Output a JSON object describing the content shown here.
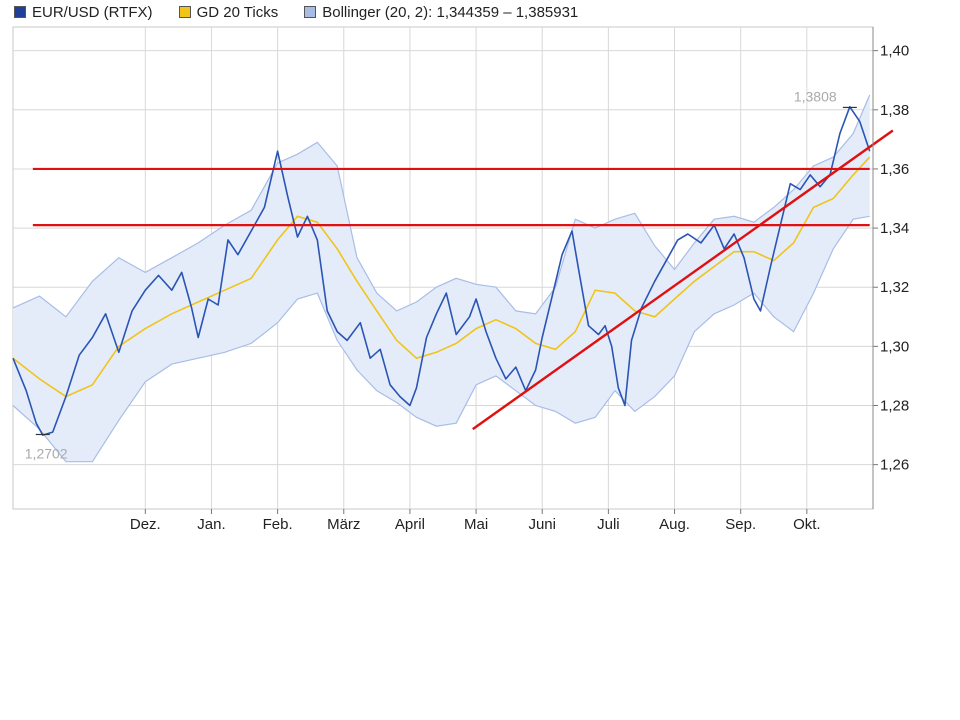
{
  "colors": {
    "price": "#2a55b5",
    "ma": "#f0c419",
    "band_fill": "#e4ecfa",
    "band_edge": "#a8bde6",
    "grid": "#d8d8d8",
    "annotation": "#e01010"
  },
  "chart_data": {
    "type": "line",
    "title": "",
    "xlabel": "",
    "ylabel": "",
    "x_range": [
      "Nov",
      "Okt.+"
    ],
    "ylim": [
      1.245,
      1.408
    ],
    "grid": true,
    "legend_position": "top-left",
    "legend": [
      {
        "name": "EUR/USD (RTFX)",
        "color": "#1f3f99"
      },
      {
        "name": "GD 20 Ticks",
        "color": "#f0c419"
      },
      {
        "name": "Bollinger (20, 2): 1,344359 – 1,385931",
        "color": "#a8bde6"
      }
    ],
    "y_ticks": [
      {
        "value": 1.4,
        "label": "1,40"
      },
      {
        "value": 1.38,
        "label": "1,38"
      },
      {
        "value": 1.36,
        "label": "1,36"
      },
      {
        "value": 1.34,
        "label": "1,34"
      },
      {
        "value": 1.32,
        "label": "1,32"
      },
      {
        "value": 1.3,
        "label": "1,30"
      },
      {
        "value": 1.28,
        "label": "1,28"
      },
      {
        "value": 1.26,
        "label": "1,26"
      }
    ],
    "x_ticks": [
      {
        "t": 1.0,
        "label": "Dez."
      },
      {
        "t": 2.0,
        "label": "Jan."
      },
      {
        "t": 3.0,
        "label": "Feb."
      },
      {
        "t": 4.0,
        "label": "März"
      },
      {
        "t": 5.0,
        "label": "April"
      },
      {
        "t": 6.0,
        "label": "Mai"
      },
      {
        "t": 7.0,
        "label": "Juni"
      },
      {
        "t": 8.0,
        "label": "Juli"
      },
      {
        "t": 9.0,
        "label": "Aug."
      },
      {
        "t": 10.0,
        "label": "Sep."
      },
      {
        "t": 11.0,
        "label": "Okt."
      }
    ],
    "x_domain": [
      -1.0,
      12.0
    ],
    "series": [
      {
        "name": "EUR/USD (RTFX)",
        "role": "price",
        "points": [
          [
            -1.0,
            1.296
          ],
          [
            -0.8,
            1.285
          ],
          [
            -0.65,
            1.274
          ],
          [
            -0.55,
            1.27
          ],
          [
            -0.4,
            1.271
          ],
          [
            -0.2,
            1.283
          ],
          [
            0.0,
            1.297
          ],
          [
            0.2,
            1.303
          ],
          [
            0.4,
            1.311
          ],
          [
            0.6,
            1.298
          ],
          [
            0.8,
            1.312
          ],
          [
            1.0,
            1.319
          ],
          [
            1.2,
            1.324
          ],
          [
            1.4,
            1.319
          ],
          [
            1.55,
            1.325
          ],
          [
            1.7,
            1.313
          ],
          [
            1.8,
            1.303
          ],
          [
            1.95,
            1.316
          ],
          [
            2.1,
            1.314
          ],
          [
            2.25,
            1.336
          ],
          [
            2.4,
            1.331
          ],
          [
            2.6,
            1.339
          ],
          [
            2.8,
            1.347
          ],
          [
            3.0,
            1.366
          ],
          [
            3.15,
            1.351
          ],
          [
            3.3,
            1.337
          ],
          [
            3.45,
            1.344
          ],
          [
            3.6,
            1.336
          ],
          [
            3.75,
            1.312
          ],
          [
            3.9,
            1.305
          ],
          [
            4.05,
            1.302
          ],
          [
            4.25,
            1.308
          ],
          [
            4.4,
            1.296
          ],
          [
            4.55,
            1.299
          ],
          [
            4.7,
            1.287
          ],
          [
            4.85,
            1.283
          ],
          [
            5.0,
            1.28
          ],
          [
            5.1,
            1.286
          ],
          [
            5.25,
            1.303
          ],
          [
            5.4,
            1.311
          ],
          [
            5.55,
            1.318
          ],
          [
            5.7,
            1.304
          ],
          [
            5.9,
            1.31
          ],
          [
            6.0,
            1.316
          ],
          [
            6.15,
            1.305
          ],
          [
            6.3,
            1.296
          ],
          [
            6.45,
            1.289
          ],
          [
            6.6,
            1.293
          ],
          [
            6.75,
            1.285
          ],
          [
            6.9,
            1.292
          ],
          [
            7.0,
            1.303
          ],
          [
            7.15,
            1.317
          ],
          [
            7.3,
            1.331
          ],
          [
            7.45,
            1.339
          ],
          [
            7.55,
            1.326
          ],
          [
            7.7,
            1.307
          ],
          [
            7.85,
            1.304
          ],
          [
            7.95,
            1.307
          ],
          [
            8.05,
            1.3
          ],
          [
            8.15,
            1.286
          ],
          [
            8.25,
            1.28
          ],
          [
            8.35,
            1.302
          ],
          [
            8.5,
            1.313
          ],
          [
            8.7,
            1.322
          ],
          [
            8.9,
            1.33
          ],
          [
            9.05,
            1.336
          ],
          [
            9.2,
            1.338
          ],
          [
            9.4,
            1.335
          ],
          [
            9.6,
            1.341
          ],
          [
            9.75,
            1.333
          ],
          [
            9.9,
            1.338
          ],
          [
            10.05,
            1.33
          ],
          [
            10.2,
            1.316
          ],
          [
            10.3,
            1.312
          ],
          [
            10.45,
            1.327
          ],
          [
            10.6,
            1.341
          ],
          [
            10.75,
            1.355
          ],
          [
            10.9,
            1.353
          ],
          [
            11.05,
            1.358
          ],
          [
            11.2,
            1.354
          ],
          [
            11.35,
            1.358
          ],
          [
            11.5,
            1.372
          ],
          [
            11.65,
            1.381
          ],
          [
            11.8,
            1.376
          ],
          [
            11.95,
            1.366
          ]
        ]
      },
      {
        "name": "GD 20 Ticks",
        "role": "ma",
        "points": [
          [
            -1.0,
            1.296
          ],
          [
            -0.6,
            1.289
          ],
          [
            -0.2,
            1.283
          ],
          [
            0.2,
            1.287
          ],
          [
            0.6,
            1.3
          ],
          [
            1.0,
            1.306
          ],
          [
            1.4,
            1.311
          ],
          [
            1.8,
            1.315
          ],
          [
            2.2,
            1.319
          ],
          [
            2.6,
            1.323
          ],
          [
            3.0,
            1.336
          ],
          [
            3.3,
            1.344
          ],
          [
            3.6,
            1.342
          ],
          [
            3.9,
            1.333
          ],
          [
            4.2,
            1.322
          ],
          [
            4.5,
            1.312
          ],
          [
            4.8,
            1.302
          ],
          [
            5.1,
            1.296
          ],
          [
            5.4,
            1.298
          ],
          [
            5.7,
            1.301
          ],
          [
            6.0,
            1.306
          ],
          [
            6.3,
            1.309
          ],
          [
            6.6,
            1.306
          ],
          [
            6.9,
            1.301
          ],
          [
            7.2,
            1.299
          ],
          [
            7.5,
            1.305
          ],
          [
            7.8,
            1.319
          ],
          [
            8.1,
            1.318
          ],
          [
            8.4,
            1.312
          ],
          [
            8.7,
            1.31
          ],
          [
            9.0,
            1.316
          ],
          [
            9.3,
            1.322
          ],
          [
            9.6,
            1.327
          ],
          [
            9.9,
            1.332
          ],
          [
            10.2,
            1.332
          ],
          [
            10.5,
            1.329
          ],
          [
            10.8,
            1.335
          ],
          [
            11.1,
            1.347
          ],
          [
            11.4,
            1.35
          ],
          [
            11.7,
            1.358
          ],
          [
            11.95,
            1.364
          ]
        ]
      },
      {
        "name": "Bollinger (20, 2): 1,344359 – 1,385931",
        "role": "band",
        "upper": [
          [
            -1.0,
            1.313
          ],
          [
            -0.6,
            1.317
          ],
          [
            -0.2,
            1.31
          ],
          [
            0.2,
            1.322
          ],
          [
            0.6,
            1.33
          ],
          [
            1.0,
            1.325
          ],
          [
            1.4,
            1.33
          ],
          [
            1.8,
            1.335
          ],
          [
            2.2,
            1.341
          ],
          [
            2.6,
            1.346
          ],
          [
            3.0,
            1.362
          ],
          [
            3.3,
            1.365
          ],
          [
            3.6,
            1.369
          ],
          [
            3.9,
            1.361
          ],
          [
            4.2,
            1.33
          ],
          [
            4.5,
            1.318
          ],
          [
            4.8,
            1.312
          ],
          [
            5.1,
            1.315
          ],
          [
            5.4,
            1.32
          ],
          [
            5.7,
            1.323
          ],
          [
            6.0,
            1.321
          ],
          [
            6.3,
            1.32
          ],
          [
            6.6,
            1.312
          ],
          [
            6.9,
            1.311
          ],
          [
            7.2,
            1.32
          ],
          [
            7.5,
            1.343
          ],
          [
            7.8,
            1.34
          ],
          [
            8.1,
            1.343
          ],
          [
            8.4,
            1.345
          ],
          [
            8.7,
            1.334
          ],
          [
            9.0,
            1.326
          ],
          [
            9.3,
            1.335
          ],
          [
            9.6,
            1.343
          ],
          [
            9.9,
            1.344
          ],
          [
            10.2,
            1.342
          ],
          [
            10.5,
            1.347
          ],
          [
            10.8,
            1.353
          ],
          [
            11.1,
            1.361
          ],
          [
            11.4,
            1.364
          ],
          [
            11.7,
            1.372
          ],
          [
            11.95,
            1.385
          ]
        ],
        "lower": [
          [
            -1.0,
            1.28
          ],
          [
            -0.6,
            1.272
          ],
          [
            -0.2,
            1.261
          ],
          [
            0.2,
            1.261
          ],
          [
            0.6,
            1.275
          ],
          [
            1.0,
            1.288
          ],
          [
            1.4,
            1.294
          ],
          [
            1.8,
            1.296
          ],
          [
            2.2,
            1.298
          ],
          [
            2.6,
            1.301
          ],
          [
            3.0,
            1.308
          ],
          [
            3.3,
            1.316
          ],
          [
            3.6,
            1.318
          ],
          [
            3.9,
            1.302
          ],
          [
            4.2,
            1.292
          ],
          [
            4.5,
            1.285
          ],
          [
            4.8,
            1.281
          ],
          [
            5.1,
            1.276
          ],
          [
            5.4,
            1.273
          ],
          [
            5.7,
            1.274
          ],
          [
            6.0,
            1.287
          ],
          [
            6.3,
            1.29
          ],
          [
            6.6,
            1.285
          ],
          [
            6.9,
            1.28
          ],
          [
            7.2,
            1.278
          ],
          [
            7.5,
            1.274
          ],
          [
            7.8,
            1.276
          ],
          [
            8.1,
            1.285
          ],
          [
            8.4,
            1.278
          ],
          [
            8.7,
            1.283
          ],
          [
            9.0,
            1.29
          ],
          [
            9.3,
            1.305
          ],
          [
            9.6,
            1.311
          ],
          [
            9.9,
            1.314
          ],
          [
            10.2,
            1.318
          ],
          [
            10.5,
            1.31
          ],
          [
            10.8,
            1.305
          ],
          [
            11.1,
            1.318
          ],
          [
            11.4,
            1.333
          ],
          [
            11.7,
            1.343
          ],
          [
            11.95,
            1.344
          ]
        ]
      }
    ],
    "annotations": [
      {
        "kind": "extreme-low",
        "label": "1,2702",
        "value": 1.2702,
        "t": -0.55
      },
      {
        "kind": "extreme-high",
        "label": "1,3808",
        "value": 1.3808,
        "t": 11.65
      },
      {
        "kind": "horizontal-line",
        "value": 1.36,
        "t_start": -0.7,
        "t_end": 11.95
      },
      {
        "kind": "horizontal-line",
        "value": 1.341,
        "t_start": -0.7,
        "t_end": 11.95
      },
      {
        "kind": "trend-line",
        "from": [
          5.95,
          1.272
        ],
        "to": [
          12.3,
          1.373
        ]
      }
    ]
  }
}
